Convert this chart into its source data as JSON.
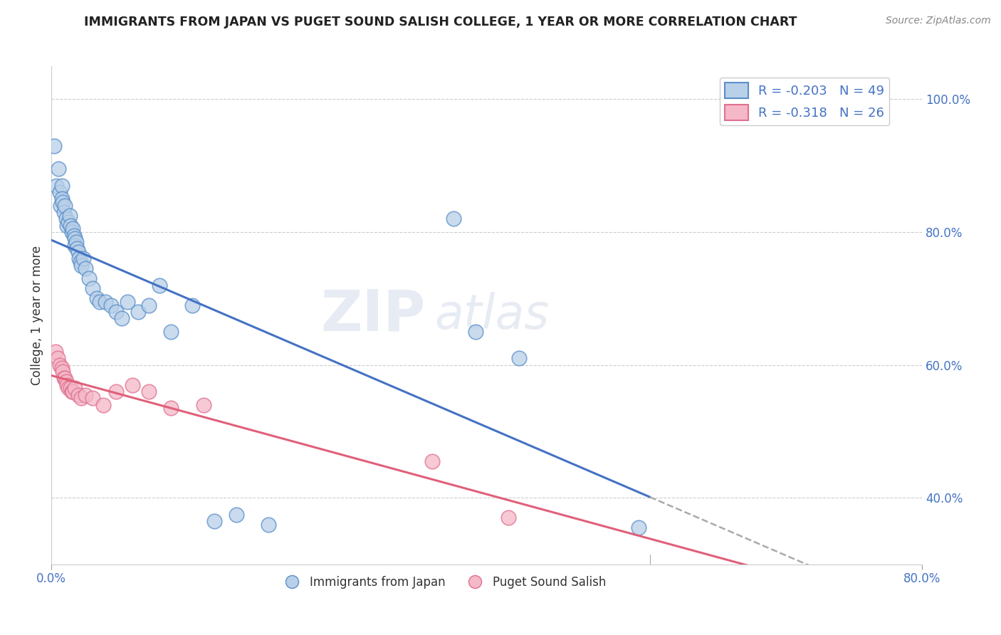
{
  "title": "IMMIGRANTS FROM JAPAN VS PUGET SOUND SALISH COLLEGE, 1 YEAR OR MORE CORRELATION CHART",
  "source": "Source: ZipAtlas.com",
  "ylabel": "College, 1 year or more",
  "xlim": [
    0.0,
    0.8
  ],
  "ylim": [
    0.3,
    1.05
  ],
  "ytick_positions": [
    0.4,
    0.6,
    0.8,
    1.0
  ],
  "ytick_labels": [
    "40.0%",
    "60.0%",
    "80.0%",
    "100.0%"
  ],
  "xtick_positions": [
    0.0,
    0.8
  ],
  "xtick_labels": [
    "0.0%",
    "80.0%"
  ],
  "legend_label1": "Immigrants from Japan",
  "legend_label2": "Puget Sound Salish",
  "R1": -0.203,
  "N1": 49,
  "R2": -0.318,
  "N2": 26,
  "blue_fill": "#b8d0e8",
  "blue_edge": "#5b8fc9",
  "pink_fill": "#f4b8c8",
  "pink_edge": "#e07090",
  "blue_line_color": "#4472c4",
  "pink_line_color": "#e0607a",
  "dash_color": "#aaaaaa",
  "watermark": "ZIPatlas",
  "blue_scatter_x": [
    0.003,
    0.005,
    0.007,
    0.008,
    0.009,
    0.01,
    0.01,
    0.011,
    0.012,
    0.013,
    0.014,
    0.015,
    0.016,
    0.017,
    0.018,
    0.019,
    0.02,
    0.021,
    0.022,
    0.022,
    0.023,
    0.024,
    0.025,
    0.026,
    0.027,
    0.028,
    0.03,
    0.032,
    0.035,
    0.038,
    0.042,
    0.045,
    0.05,
    0.055,
    0.06,
    0.065,
    0.07,
    0.08,
    0.09,
    0.1,
    0.11,
    0.13,
    0.15,
    0.17,
    0.2,
    0.37,
    0.39,
    0.43,
    0.54
  ],
  "blue_scatter_y": [
    0.93,
    0.87,
    0.895,
    0.86,
    0.84,
    0.87,
    0.85,
    0.845,
    0.83,
    0.84,
    0.82,
    0.81,
    0.815,
    0.825,
    0.81,
    0.8,
    0.805,
    0.795,
    0.79,
    0.78,
    0.785,
    0.775,
    0.77,
    0.76,
    0.755,
    0.75,
    0.76,
    0.745,
    0.73,
    0.715,
    0.7,
    0.695,
    0.695,
    0.69,
    0.68,
    0.67,
    0.695,
    0.68,
    0.69,
    0.72,
    0.65,
    0.69,
    0.365,
    0.375,
    0.36,
    0.82,
    0.65,
    0.61,
    0.355
  ],
  "pink_scatter_x": [
    0.004,
    0.006,
    0.008,
    0.01,
    0.011,
    0.012,
    0.013,
    0.014,
    0.015,
    0.016,
    0.018,
    0.019,
    0.02,
    0.022,
    0.025,
    0.028,
    0.032,
    0.038,
    0.048,
    0.06,
    0.075,
    0.09,
    0.11,
    0.14,
    0.35,
    0.42
  ],
  "pink_scatter_y": [
    0.62,
    0.61,
    0.6,
    0.595,
    0.59,
    0.58,
    0.58,
    0.575,
    0.57,
    0.565,
    0.565,
    0.56,
    0.56,
    0.565,
    0.555,
    0.55,
    0.555,
    0.55,
    0.54,
    0.56,
    0.57,
    0.56,
    0.535,
    0.54,
    0.455,
    0.37
  ]
}
